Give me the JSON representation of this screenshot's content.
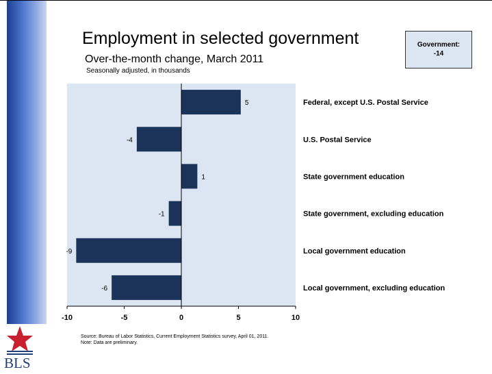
{
  "header": {
    "title": "Employment in selected government",
    "subtitle": "Over-the-month change, March 2011",
    "units_note": "Seasonally adjusted, in thousands"
  },
  "callout": {
    "label": "Government:",
    "value": "-14"
  },
  "footer": {
    "source": "Source: Bureau of Labor Statistics, Current Employment Statistics survey, April 01, 2011.",
    "note": "Note: Data are preliminary."
  },
  "logo": {
    "text": "BLS"
  },
  "colors": {
    "bar": "#1c3359",
    "plot_background": "#dce6f2",
    "sidebar_dark": "#1f3f8f",
    "logo_red": "#c8202f",
    "logo_blue": "#1f3e7a"
  },
  "chart_data": {
    "type": "bar",
    "orientation": "horizontal",
    "title": "Employment in selected government",
    "subtitle": "Over-the-month change, March 2011",
    "units": "Seasonally adjusted, in thousands",
    "categories": [
      "Federal, except U.S. Postal Service",
      "U.S. Postal Service",
      "State government education",
      "State government, excluding education",
      "Local government education",
      "Local government, excluding education"
    ],
    "values": [
      5.2,
      -3.9,
      1.4,
      -1.1,
      -9.2,
      -6.1
    ],
    "data_labels": [
      "5",
      "-4",
      "1",
      "-1",
      "-9",
      "-6"
    ],
    "xlim": [
      -10,
      10
    ],
    "xticks": [
      -10,
      -5,
      0,
      5,
      10
    ],
    "xtick_labels": [
      "-10",
      "-5",
      "0",
      "5",
      "10"
    ],
    "grid": false,
    "legend": "none"
  }
}
